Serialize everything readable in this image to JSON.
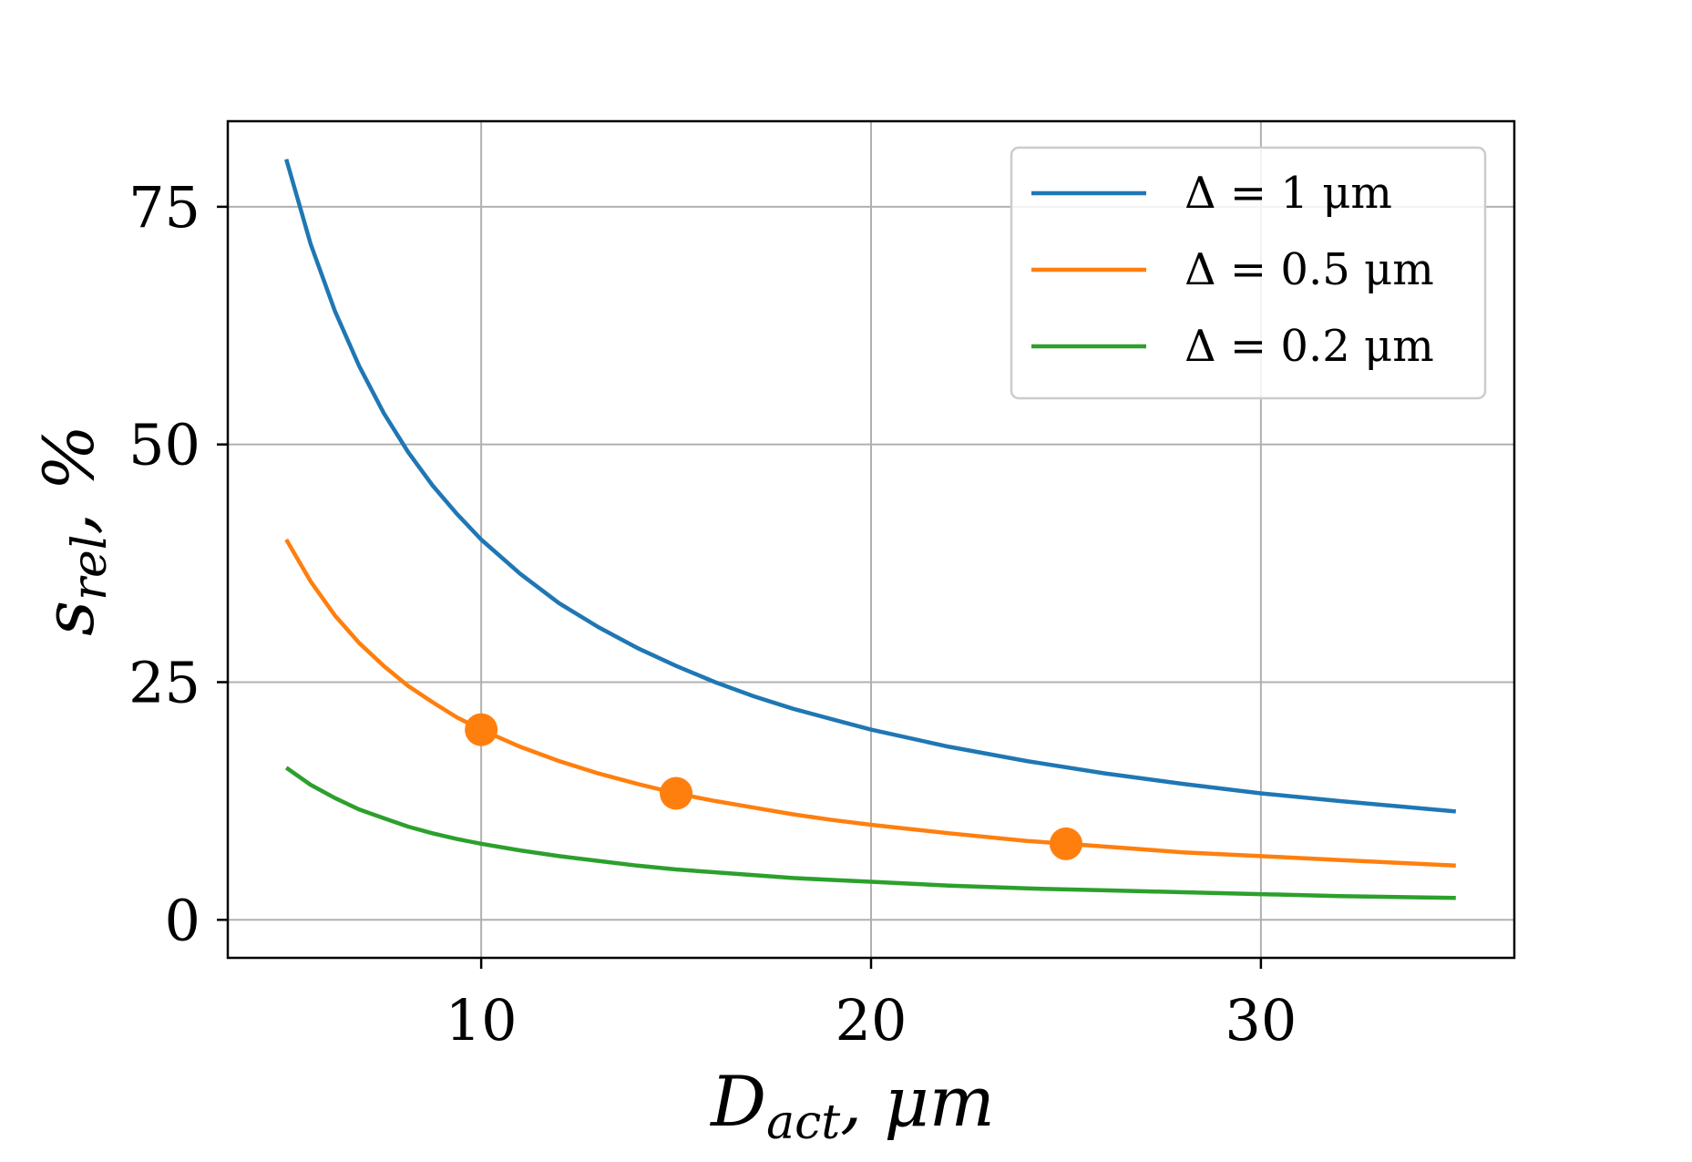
{
  "chart_data": {
    "type": "line",
    "xlabel": {
      "main": "D",
      "sub": "act",
      "unit": ",  μm"
    },
    "ylabel": {
      "main": "s",
      "sub": "rel",
      "unit": ",  %"
    },
    "xlim": [
      3.5,
      36.5
    ],
    "ylim": [
      -4,
      84
    ],
    "x_ticks": [
      10,
      20,
      30
    ],
    "y_ticks": [
      0,
      25,
      50,
      75
    ],
    "grid": true,
    "legend_position": "top-right",
    "series": [
      {
        "name": "Δ = 1 μm",
        "color": "#1f77b4",
        "x": [
          5,
          5.625,
          6.25,
          6.875,
          7.5,
          8.125,
          8.75,
          9.375,
          10,
          11,
          12,
          13,
          14,
          15,
          16,
          17,
          18,
          19,
          20,
          22,
          24,
          26,
          28,
          30,
          32,
          35
        ],
        "y": [
          80,
          71.1,
          64,
          58.2,
          53.3,
          49.2,
          45.7,
          42.7,
          40,
          36.4,
          33.3,
          30.8,
          28.6,
          26.7,
          25,
          23.5,
          22.2,
          21.1,
          20,
          18.2,
          16.7,
          15.4,
          14.3,
          13.3,
          12.5,
          11.4
        ]
      },
      {
        "name": "Δ = 0.5 μm",
        "color": "#ff7f0e",
        "x": [
          5,
          5.625,
          6.25,
          6.875,
          7.5,
          8.125,
          8.75,
          9.375,
          10,
          11,
          12,
          13,
          14,
          15,
          16,
          17,
          18,
          19,
          20,
          22,
          24,
          26,
          28,
          30,
          32,
          35
        ],
        "y": [
          40,
          35.6,
          32,
          29.1,
          26.7,
          24.6,
          22.9,
          21.3,
          20,
          18.2,
          16.7,
          15.4,
          14.3,
          13.3,
          12.5,
          11.8,
          11.1,
          10.5,
          10,
          9.1,
          8.3,
          7.7,
          7.1,
          6.7,
          6.3,
          5.7
        ]
      },
      {
        "name": "Δ = 0.2 μm",
        "color": "#2ca02c",
        "x": [
          5,
          5.625,
          6.25,
          6.875,
          7.5,
          8.125,
          8.75,
          9.375,
          10,
          11,
          12,
          13,
          14,
          15,
          16,
          17,
          18,
          19,
          20,
          22,
          24,
          26,
          28,
          30,
          32,
          35
        ],
        "y": [
          16,
          14.2,
          12.8,
          11.6,
          10.7,
          9.8,
          9.1,
          8.5,
          8,
          7.3,
          6.7,
          6.2,
          5.7,
          5.3,
          5,
          4.7,
          4.4,
          4.2,
          4,
          3.6,
          3.3,
          3.1,
          2.9,
          2.7,
          2.5,
          2.3
        ]
      }
    ],
    "markers": {
      "series": "Δ = 0.5 μm",
      "color": "#ff7f0e",
      "x": [
        10,
        15,
        25
      ],
      "y": [
        20,
        13.3,
        8
      ]
    }
  }
}
